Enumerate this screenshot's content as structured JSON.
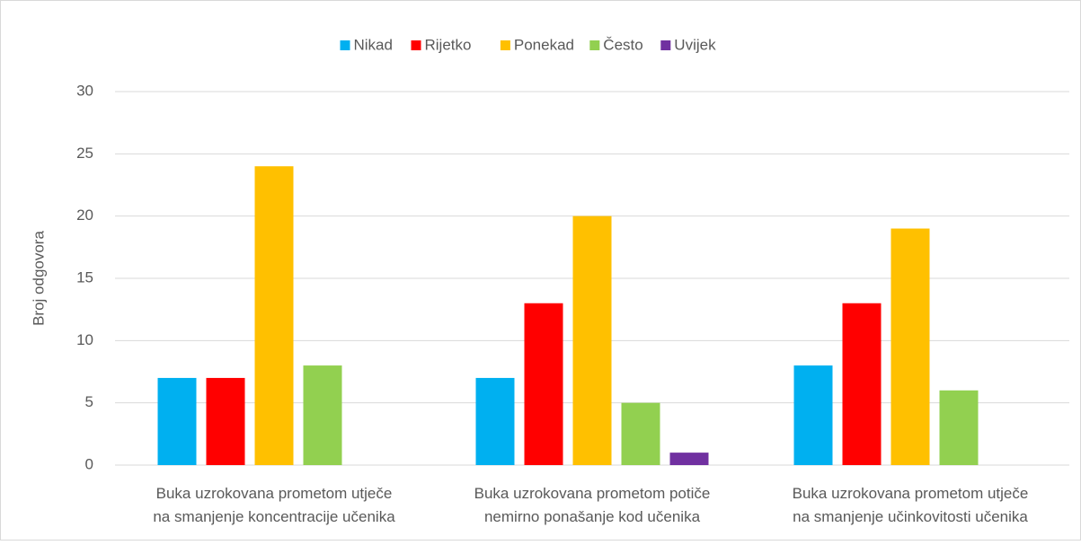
{
  "chart_data": {
    "type": "bar",
    "y_label": "Broj odgovora",
    "categories": [
      [
        "Buka uzrokovana prometom utječe",
        "na smanjenje koncentracije učenika"
      ],
      [
        "Buka uzrokovana prometom potiče",
        "nemirno ponašanje kod učenika"
      ],
      [
        "Buka uzrokovana prometom utječe",
        "na smanjenje učinkovitosti učenika"
      ]
    ],
    "series": [
      {
        "name": "Nikad",
        "color": "#00b0f0",
        "values": [
          7,
          7,
          8
        ]
      },
      {
        "name": "Rijetko",
        "color": "#ff0000",
        "values": [
          7,
          13,
          13
        ]
      },
      {
        "name": "Ponekad",
        "color": "#ffc000",
        "values": [
          24,
          20,
          19
        ]
      },
      {
        "name": "Često",
        "color": "#92d050",
        "values": [
          8,
          5,
          6
        ]
      },
      {
        "name": "Uvijek",
        "color": "#7030a0",
        "values": [
          0,
          1,
          0
        ]
      }
    ],
    "ylim": [
      0,
      30
    ],
    "yticks": [
      0,
      5,
      10,
      15,
      20,
      25,
      30
    ],
    "grid": true,
    "legend": "top"
  }
}
